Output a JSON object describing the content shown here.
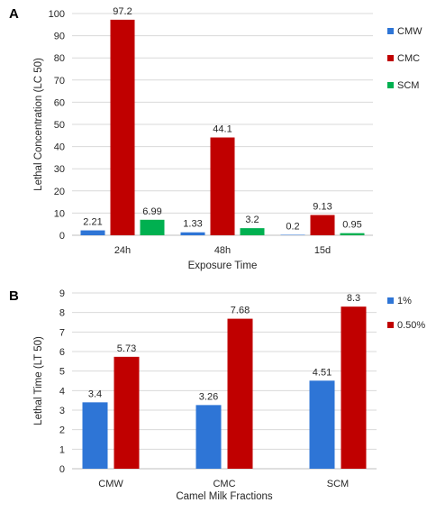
{
  "chart_data": [
    {
      "panel": "A",
      "type": "bar",
      "categories": [
        "24h",
        "48h",
        "15d"
      ],
      "series": [
        {
          "name": "CMW",
          "color": "#2e75d6",
          "values": [
            2.21,
            1.33,
            0.2
          ]
        },
        {
          "name": "CMC",
          "color": "#c00000",
          "values": [
            97.2,
            44.1,
            9.13
          ]
        },
        {
          "name": "SCM",
          "color": "#00b050",
          "values": [
            6.99,
            3.2,
            0.95
          ]
        }
      ],
      "data_labels": [
        [
          "2.21",
          "1.33",
          "0.2"
        ],
        [
          "97.2",
          "44.1",
          "9.13"
        ],
        [
          "6.99",
          "3.2",
          "0.95"
        ]
      ],
      "xlabel": "Exposure Time",
      "ylabel": "Lethal Concentration (LC 50)",
      "ylim": [
        0,
        100
      ],
      "yticks": [
        0,
        10,
        20,
        30,
        40,
        50,
        60,
        70,
        80,
        90,
        100
      ],
      "grid": true,
      "legend": "right"
    },
    {
      "panel": "B",
      "type": "bar",
      "categories": [
        "CMW",
        "CMC",
        "SCM"
      ],
      "series": [
        {
          "name": "1%",
          "color": "#2e75d6",
          "values": [
            3.4,
            3.26,
            4.51
          ]
        },
        {
          "name": "0.50%",
          "color": "#c00000",
          "values": [
            5.73,
            7.68,
            8.3
          ]
        }
      ],
      "data_labels": [
        [
          "3.4",
          "3.26",
          "4.51"
        ],
        [
          "5.73",
          "7.68",
          "8.3"
        ]
      ],
      "xlabel": "Camel Milk Fractions",
      "ylabel": "Lethal Time (LT 50)",
      "ylim": [
        0,
        9
      ],
      "yticks": [
        0,
        1,
        2,
        3,
        4,
        5,
        6,
        7,
        8,
        9
      ],
      "grid": true,
      "legend": "top-right"
    }
  ]
}
